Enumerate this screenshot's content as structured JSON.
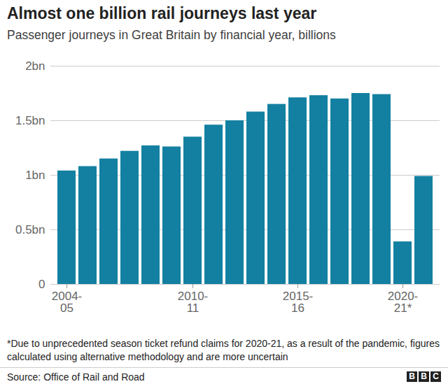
{
  "chart_data": {
    "type": "bar",
    "title": "Almost one billion rail journeys last year",
    "subtitle": "Passenger journeys in Great Britain by financial year, billions",
    "categories": [
      "2004-\n05",
      null,
      null,
      null,
      null,
      null,
      "2010-\n11",
      null,
      null,
      null,
      null,
      "2015-\n16",
      null,
      null,
      null,
      null,
      "2020-\n21*",
      null
    ],
    "values": [
      1.04,
      1.08,
      1.15,
      1.22,
      1.27,
      1.26,
      1.35,
      1.46,
      1.5,
      1.58,
      1.65,
      1.71,
      1.73,
      1.7,
      1.75,
      1.74,
      0.39,
      0.99
    ],
    "color": "#1380a1",
    "ylim": [
      0,
      2
    ],
    "yticks": [
      0,
      {
        "value": 0.5,
        "label": "0.5bn"
      },
      {
        "value": 1,
        "label": "1bn"
      },
      {
        "value": 1.5,
        "label": "1.5bn"
      },
      {
        "value": 2,
        "label": "2bn"
      }
    ],
    "grid": true,
    "footnote": "*Due to unprecedented season ticket refund claims for 2020-21, as a result of the pandemic, figures calculated using alternative methodology and are more uncertain",
    "source": "Source: Office of Rail and Road",
    "logo": "BBC"
  }
}
